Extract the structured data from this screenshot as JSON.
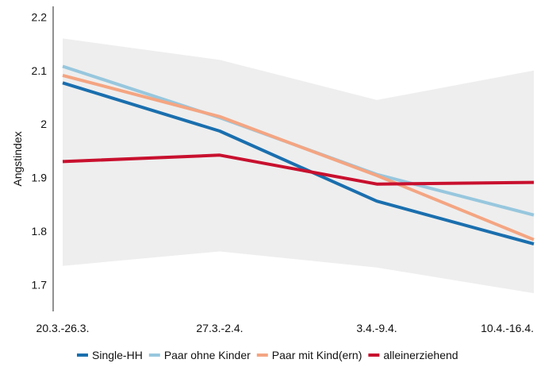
{
  "chart_data": {
    "type": "line",
    "title": "",
    "xlabel": "",
    "ylabel": "Angstindex",
    "categories": [
      "20.3.-26.3.",
      "27.3.-2.4.",
      "3.4.-9.4.",
      "10.4.-16.4."
    ],
    "ylim": [
      1.65,
      2.22
    ],
    "yticks": [
      1.7,
      1.8,
      1.9,
      2,
      2.1,
      2.2
    ],
    "ytick_labels": [
      "1.7",
      "1.8",
      "1.9",
      "2",
      "2.1",
      "2.2"
    ],
    "grid": false,
    "legend_position": "bottom",
    "band": {
      "upper": [
        2.16,
        2.12,
        2.045,
        2.1
      ],
      "lower": [
        1.735,
        1.762,
        1.732,
        1.684
      ],
      "color": "#eeeeee"
    },
    "series": [
      {
        "name": "Single-HH",
        "color": "#1a6fae",
        "values": [
          2.077,
          1.987,
          1.856,
          1.776
        ]
      },
      {
        "name": "Paar ohne Kinder",
        "color": "#97c7de",
        "values": [
          2.108,
          2.012,
          1.906,
          1.83
        ]
      },
      {
        "name": "Paar mit Kind(ern)",
        "color": "#f4a582",
        "values": [
          2.091,
          2.014,
          1.904,
          1.784
        ]
      },
      {
        "name": "alleinerziehend",
        "color": "#c8102e",
        "values": [
          1.93,
          1.942,
          1.888,
          1.891
        ]
      }
    ]
  }
}
